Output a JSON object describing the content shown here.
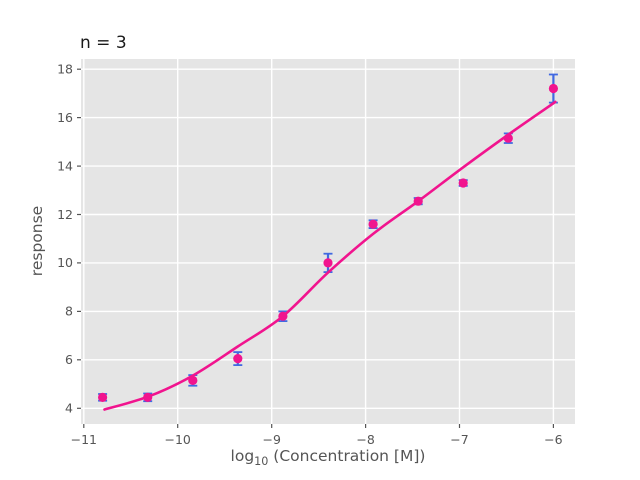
{
  "chart_data": {
    "type": "scatter",
    "title": "n = 3",
    "xlabel": "log10 (Concentration [M])",
    "xlabel_parts": {
      "pre": "log",
      "sub": "10",
      "post": " (Concentration [M])"
    },
    "ylabel": "response",
    "xlim": [
      -11.03,
      -5.77
    ],
    "ylim": [
      3.35,
      18.42
    ],
    "x_ticks": [
      -11,
      -10,
      -9,
      -8,
      -7,
      -6
    ],
    "x_tick_labels": [
      "−11",
      "−10",
      "−9",
      "−8",
      "−7",
      "−6"
    ],
    "y_ticks": [
      4,
      6,
      8,
      10,
      12,
      14,
      16,
      18
    ],
    "y_tick_labels": [
      "4",
      "6",
      "8",
      "10",
      "12",
      "14",
      "16",
      "18"
    ],
    "grid": true,
    "legend": false,
    "series": [
      {
        "name": "measured-points",
        "type": "scatter_errorbar",
        "marker_color": "#F1148E",
        "errorbar_color": "#4169E1",
        "points": [
          {
            "x": -10.8,
            "y": 4.45,
            "yerr": 0.14
          },
          {
            "x": -10.32,
            "y": 4.45,
            "yerr": 0.16
          },
          {
            "x": -9.84,
            "y": 5.15,
            "yerr": 0.22
          },
          {
            "x": -9.36,
            "y": 6.05,
            "yerr": 0.27
          },
          {
            "x": -8.88,
            "y": 7.8,
            "yerr": 0.2
          },
          {
            "x": -8.4,
            "y": 10.0,
            "yerr": 0.38
          },
          {
            "x": -7.92,
            "y": 11.6,
            "yerr": 0.16
          },
          {
            "x": -7.44,
            "y": 12.55,
            "yerr": 0.13
          },
          {
            "x": -6.96,
            "y": 13.3,
            "yerr": 0.12
          },
          {
            "x": -6.48,
            "y": 15.15,
            "yerr": 0.2
          },
          {
            "x": -6.0,
            "y": 17.2,
            "yerr": 0.58
          }
        ]
      },
      {
        "name": "fit-curve",
        "type": "line",
        "color": "#F1148E",
        "x": [
          -10.78,
          -10.3,
          -9.84,
          -9.36,
          -8.88,
          -8.4,
          -7.92,
          -7.44,
          -6.96,
          -6.48,
          -5.98
        ],
        "y": [
          3.95,
          4.5,
          5.35,
          6.55,
          7.8,
          9.6,
          11.2,
          12.55,
          13.95,
          15.3,
          16.65
        ]
      }
    ],
    "colors": {
      "figure_bg": "#ffffff",
      "plot_bg": "#e5e5e5",
      "gridline": "#ffffff",
      "tick_text": "#555555",
      "axis_label_text": "#555555",
      "title_text": "#1a1a1a"
    }
  }
}
